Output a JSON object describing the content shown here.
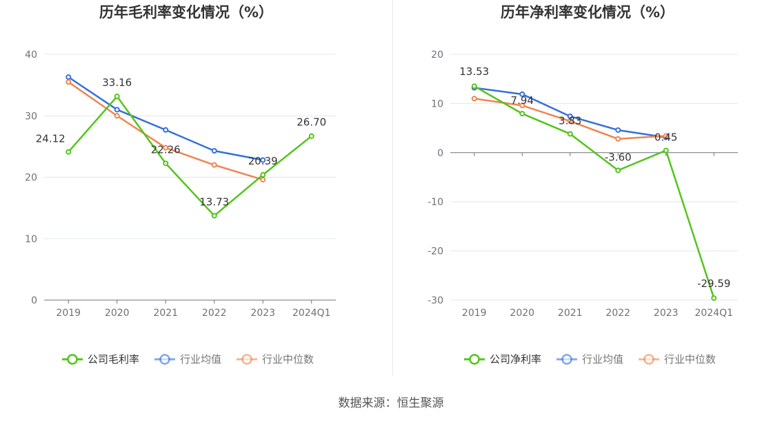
{
  "colors": {
    "company": "#52c41a",
    "industry_avg": "#3370d8",
    "industry_median": "#f08450",
    "axis": "#6e7079",
    "grid": "#e0e6f1",
    "text": "#333333"
  },
  "footer": {
    "source": "数据来源：恒生聚源"
  },
  "chart_data": [
    {
      "type": "line",
      "title": "历年毛利率变化情况（%）",
      "categories": [
        "2019",
        "2020",
        "2021",
        "2022",
        "2023",
        "2024Q1"
      ],
      "ylim": [
        0,
        40
      ],
      "yticks": [
        0,
        10,
        20,
        30,
        40
      ],
      "grid": true,
      "legend_position": "bottom",
      "series": [
        {
          "name": "公司毛利率",
          "key": "company",
          "values": [
            24.12,
            33.16,
            22.26,
            13.73,
            20.39,
            26.7
          ],
          "labels": [
            "24.12",
            "33.16",
            "22.26",
            "13.73",
            "20.39",
            "26.70"
          ]
        },
        {
          "name": "行业均值",
          "key": "industry_avg",
          "values": [
            36.3,
            31.0,
            27.7,
            24.3,
            22.8,
            null
          ]
        },
        {
          "name": "行业中位数",
          "key": "industry_median",
          "values": [
            35.5,
            30.0,
            24.8,
            22.0,
            19.6,
            null
          ]
        }
      ]
    },
    {
      "type": "line",
      "title": "历年净利率变化情况（%）",
      "categories": [
        "2019",
        "2020",
        "2021",
        "2022",
        "2023",
        "2024Q1"
      ],
      "ylim": [
        -30,
        20
      ],
      "yticks": [
        -30,
        -20,
        -10,
        0,
        10,
        20
      ],
      "grid": true,
      "legend_position": "bottom",
      "series": [
        {
          "name": "公司净利率",
          "key": "company",
          "values": [
            13.53,
            7.94,
            3.83,
            -3.6,
            0.45,
            -29.59
          ],
          "labels": [
            "13.53",
            "7.94",
            "3.83",
            "-3.60",
            "0.45",
            "-29.59"
          ]
        },
        {
          "name": "行业均值",
          "key": "industry_avg",
          "values": [
            13.2,
            11.9,
            7.4,
            4.6,
            3.1,
            null
          ]
        },
        {
          "name": "行业中位数",
          "key": "industry_median",
          "values": [
            11.0,
            9.6,
            6.4,
            2.8,
            3.4,
            null
          ]
        }
      ]
    }
  ]
}
